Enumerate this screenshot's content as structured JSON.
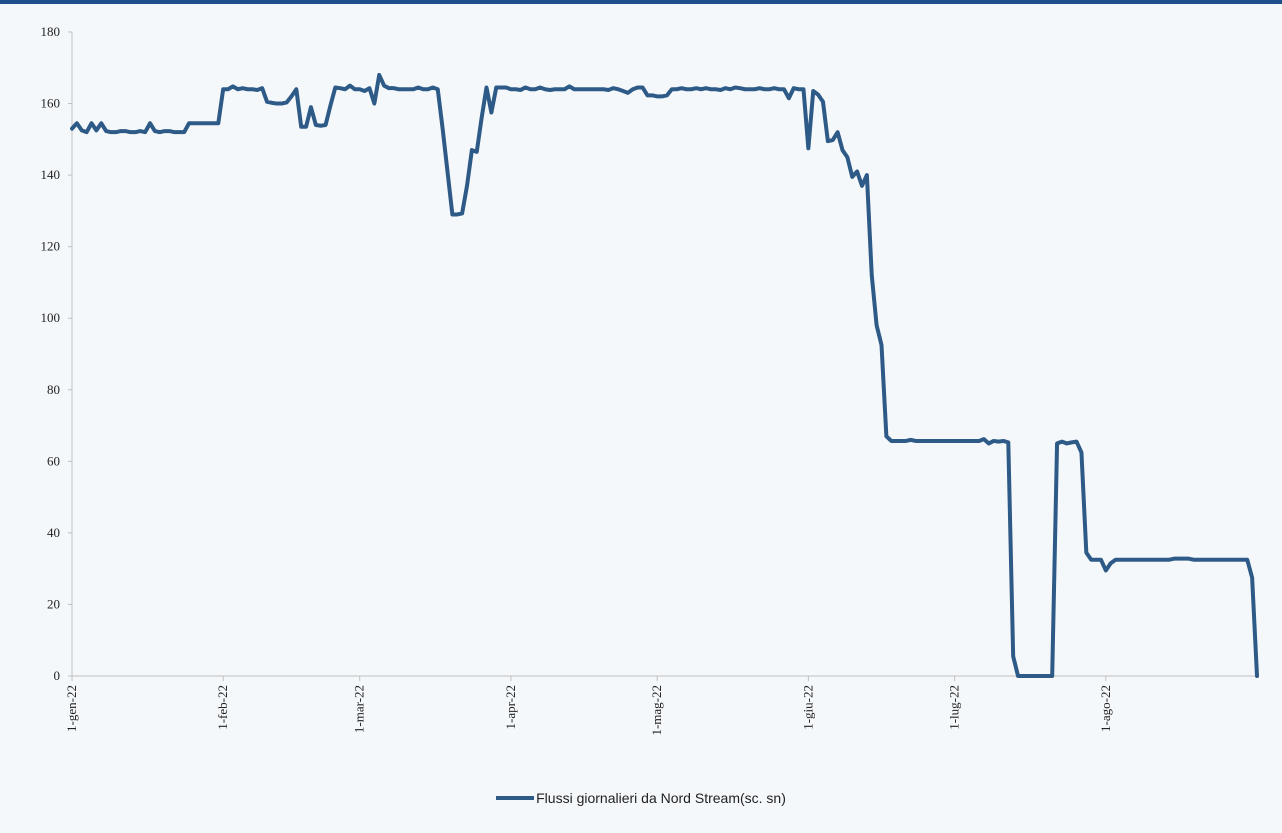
{
  "chart_data": {
    "type": "line",
    "title": "",
    "xlabel": "",
    "ylabel": "",
    "ylim": [
      0,
      180
    ],
    "yticks": [
      0,
      20,
      40,
      60,
      80,
      100,
      120,
      140,
      160,
      180
    ],
    "xticks": [
      {
        "date": "2022-01-01",
        "label": "1-gen-22"
      },
      {
        "date": "2022-02-01",
        "label": "1-feb-22"
      },
      {
        "date": "2022-03-01",
        "label": "1-mar-22"
      },
      {
        "date": "2022-04-01",
        "label": "1-apr-22"
      },
      {
        "date": "2022-05-01",
        "label": "1-mag-22"
      },
      {
        "date": "2022-06-01",
        "label": "1-giu-22"
      },
      {
        "date": "2022-07-01",
        "label": "1-lug-22"
      },
      {
        "date": "2022-08-01",
        "label": "1-ago-22"
      }
    ],
    "xlim": [
      "2022-01-01",
      "2022-09-01"
    ],
    "grid": false,
    "legend_position": "bottom",
    "line_color": "#2e5a87",
    "series": [
      {
        "name": "Flussi giornalieri da Nord Stream(sc. sn)",
        "points": [
          [
            "2022-01-01",
            153
          ],
          [
            "2022-01-02",
            154.5
          ],
          [
            "2022-01-03",
            152.5
          ],
          [
            "2022-01-04",
            152
          ],
          [
            "2022-01-05",
            154.5
          ],
          [
            "2022-01-06",
            152.5
          ],
          [
            "2022-01-07",
            154.5
          ],
          [
            "2022-01-08",
            152.3
          ],
          [
            "2022-01-09",
            152
          ],
          [
            "2022-01-10",
            152
          ],
          [
            "2022-01-11",
            152.3
          ],
          [
            "2022-01-12",
            152.3
          ],
          [
            "2022-01-13",
            152
          ],
          [
            "2022-01-14",
            152
          ],
          [
            "2022-01-15",
            152.3
          ],
          [
            "2022-01-16",
            152
          ],
          [
            "2022-01-17",
            154.5
          ],
          [
            "2022-01-18",
            152.3
          ],
          [
            "2022-01-19",
            152
          ],
          [
            "2022-01-20",
            152.3
          ],
          [
            "2022-01-21",
            152.3
          ],
          [
            "2022-01-22",
            152
          ],
          [
            "2022-01-23",
            152
          ],
          [
            "2022-01-24",
            152
          ],
          [
            "2022-01-25",
            154.5
          ],
          [
            "2022-01-26",
            154.5
          ],
          [
            "2022-01-27",
            154.5
          ],
          [
            "2022-01-28",
            154.5
          ],
          [
            "2022-01-29",
            154.5
          ],
          [
            "2022-01-30",
            154.5
          ],
          [
            "2022-01-31",
            154.5
          ],
          [
            "2022-02-01",
            164
          ],
          [
            "2022-02-02",
            164
          ],
          [
            "2022-02-03",
            164.8
          ],
          [
            "2022-02-04",
            164
          ],
          [
            "2022-02-05",
            164.3
          ],
          [
            "2022-02-06",
            164
          ],
          [
            "2022-02-07",
            164
          ],
          [
            "2022-02-08",
            163.8
          ],
          [
            "2022-02-09",
            164.3
          ],
          [
            "2022-02-10",
            160.5
          ],
          [
            "2022-02-11",
            160.2
          ],
          [
            "2022-02-12",
            160
          ],
          [
            "2022-02-13",
            160
          ],
          [
            "2022-02-14",
            160.3
          ],
          [
            "2022-02-15",
            162
          ],
          [
            "2022-02-16",
            164
          ],
          [
            "2022-02-17",
            153.5
          ],
          [
            "2022-02-18",
            153.5
          ],
          [
            "2022-02-19",
            159
          ],
          [
            "2022-02-20",
            154
          ],
          [
            "2022-02-21",
            153.8
          ],
          [
            "2022-02-22",
            154
          ],
          [
            "2022-02-23",
            159.5
          ],
          [
            "2022-02-24",
            164.5
          ],
          [
            "2022-02-25",
            164.3
          ],
          [
            "2022-02-26",
            164
          ],
          [
            "2022-02-27",
            165
          ],
          [
            "2022-02-28",
            164
          ],
          [
            "2022-03-01",
            164
          ],
          [
            "2022-03-02",
            163.5
          ],
          [
            "2022-03-03",
            164.3
          ],
          [
            "2022-03-04",
            160
          ],
          [
            "2022-03-05",
            168
          ],
          [
            "2022-03-06",
            165
          ],
          [
            "2022-03-07",
            164.3
          ],
          [
            "2022-03-08",
            164.3
          ],
          [
            "2022-03-09",
            164
          ],
          [
            "2022-03-10",
            164
          ],
          [
            "2022-03-11",
            164
          ],
          [
            "2022-03-12",
            164
          ],
          [
            "2022-03-13",
            164.5
          ],
          [
            "2022-03-14",
            164
          ],
          [
            "2022-03-15",
            164
          ],
          [
            "2022-03-16",
            164.5
          ],
          [
            "2022-03-17",
            164
          ],
          [
            "2022-03-18",
            153
          ],
          [
            "2022-03-19",
            141
          ],
          [
            "2022-03-20",
            129
          ],
          [
            "2022-03-21",
            129
          ],
          [
            "2022-03-22",
            129.3
          ],
          [
            "2022-03-23",
            137
          ],
          [
            "2022-03-24",
            147
          ],
          [
            "2022-03-25",
            146.5
          ],
          [
            "2022-03-26",
            156
          ],
          [
            "2022-03-27",
            164.5
          ],
          [
            "2022-03-28",
            157.5
          ],
          [
            "2022-03-29",
            164.5
          ],
          [
            "2022-03-30",
            164.5
          ],
          [
            "2022-03-31",
            164.5
          ],
          [
            "2022-04-01",
            164
          ],
          [
            "2022-04-02",
            164
          ],
          [
            "2022-04-03",
            163.8
          ],
          [
            "2022-04-04",
            164.5
          ],
          [
            "2022-04-05",
            164
          ],
          [
            "2022-04-06",
            164
          ],
          [
            "2022-04-07",
            164.5
          ],
          [
            "2022-04-08",
            164
          ],
          [
            "2022-04-09",
            163.8
          ],
          [
            "2022-04-10",
            164
          ],
          [
            "2022-04-11",
            164
          ],
          [
            "2022-04-12",
            164
          ],
          [
            "2022-04-13",
            164.8
          ],
          [
            "2022-04-14",
            164
          ],
          [
            "2022-04-15",
            164
          ],
          [
            "2022-04-16",
            164
          ],
          [
            "2022-04-17",
            164
          ],
          [
            "2022-04-18",
            164
          ],
          [
            "2022-04-19",
            164
          ],
          [
            "2022-04-20",
            164
          ],
          [
            "2022-04-21",
            163.8
          ],
          [
            "2022-04-22",
            164.3
          ],
          [
            "2022-04-23",
            164
          ],
          [
            "2022-04-24",
            163.5
          ],
          [
            "2022-04-25",
            163
          ],
          [
            "2022-04-26",
            164
          ],
          [
            "2022-04-27",
            164.5
          ],
          [
            "2022-04-28",
            164.5
          ],
          [
            "2022-04-29",
            162.3
          ],
          [
            "2022-04-30",
            162.3
          ],
          [
            "2022-05-01",
            162
          ],
          [
            "2022-05-02",
            162
          ],
          [
            "2022-05-03",
            162.3
          ],
          [
            "2022-05-04",
            164
          ],
          [
            "2022-05-05",
            164
          ],
          [
            "2022-05-06",
            164.3
          ],
          [
            "2022-05-07",
            164
          ],
          [
            "2022-05-08",
            164
          ],
          [
            "2022-05-09",
            164.3
          ],
          [
            "2022-05-10",
            164
          ],
          [
            "2022-05-11",
            164.3
          ],
          [
            "2022-05-12",
            164
          ],
          [
            "2022-05-13",
            164
          ],
          [
            "2022-05-14",
            163.8
          ],
          [
            "2022-05-15",
            164.3
          ],
          [
            "2022-05-16",
            164
          ],
          [
            "2022-05-17",
            164.5
          ],
          [
            "2022-05-18",
            164.3
          ],
          [
            "2022-05-19",
            164
          ],
          [
            "2022-05-20",
            164
          ],
          [
            "2022-05-21",
            164
          ],
          [
            "2022-05-22",
            164.3
          ],
          [
            "2022-05-23",
            164
          ],
          [
            "2022-05-24",
            164
          ],
          [
            "2022-05-25",
            164.3
          ],
          [
            "2022-05-26",
            164
          ],
          [
            "2022-05-27",
            164
          ],
          [
            "2022-05-28",
            161.5
          ],
          [
            "2022-05-29",
            164.3
          ],
          [
            "2022-05-30",
            164
          ],
          [
            "2022-05-31",
            164
          ],
          [
            "2022-06-01",
            147.5
          ],
          [
            "2022-06-02",
            163.5
          ],
          [
            "2022-06-03",
            162.5
          ],
          [
            "2022-06-04",
            160.5
          ],
          [
            "2022-06-05",
            149.5
          ],
          [
            "2022-06-06",
            149.8
          ],
          [
            "2022-06-07",
            152
          ],
          [
            "2022-06-08",
            147
          ],
          [
            "2022-06-09",
            145
          ],
          [
            "2022-06-10",
            139.5
          ],
          [
            "2022-06-11",
            141
          ],
          [
            "2022-06-12",
            137
          ],
          [
            "2022-06-13",
            140
          ],
          [
            "2022-06-14",
            112
          ],
          [
            "2022-06-15",
            98
          ],
          [
            "2022-06-16",
            92.5
          ],
          [
            "2022-06-17",
            67
          ],
          [
            "2022-06-18",
            65.7
          ],
          [
            "2022-06-19",
            65.7
          ],
          [
            "2022-06-20",
            65.7
          ],
          [
            "2022-06-21",
            65.7
          ],
          [
            "2022-06-22",
            66
          ],
          [
            "2022-06-23",
            65.7
          ],
          [
            "2022-06-24",
            65.7
          ],
          [
            "2022-06-25",
            65.7
          ],
          [
            "2022-06-26",
            65.7
          ],
          [
            "2022-06-27",
            65.7
          ],
          [
            "2022-06-28",
            65.7
          ],
          [
            "2022-06-29",
            65.7
          ],
          [
            "2022-06-30",
            65.7
          ],
          [
            "2022-07-01",
            65.7
          ],
          [
            "2022-07-02",
            65.7
          ],
          [
            "2022-07-03",
            65.7
          ],
          [
            "2022-07-04",
            65.7
          ],
          [
            "2022-07-05",
            65.7
          ],
          [
            "2022-07-06",
            65.7
          ],
          [
            "2022-07-07",
            66.2
          ],
          [
            "2022-07-08",
            65
          ],
          [
            "2022-07-09",
            65.7
          ],
          [
            "2022-07-10",
            65.5
          ],
          [
            "2022-07-11",
            65.7
          ],
          [
            "2022-07-12",
            65.3
          ],
          [
            "2022-07-13",
            5.5
          ],
          [
            "2022-07-14",
            0
          ],
          [
            "2022-07-15",
            0
          ],
          [
            "2022-07-16",
            0
          ],
          [
            "2022-07-17",
            0
          ],
          [
            "2022-07-18",
            0
          ],
          [
            "2022-07-19",
            0
          ],
          [
            "2022-07-20",
            0
          ],
          [
            "2022-07-21",
            0
          ],
          [
            "2022-07-22",
            65
          ],
          [
            "2022-07-23",
            65.5
          ],
          [
            "2022-07-24",
            65
          ],
          [
            "2022-07-25",
            65.3
          ],
          [
            "2022-07-26",
            65.5
          ],
          [
            "2022-07-27",
            62.5
          ],
          [
            "2022-07-28",
            34.5
          ],
          [
            "2022-07-29",
            32.5
          ],
          [
            "2022-07-30",
            32.5
          ],
          [
            "2022-07-31",
            32.5
          ],
          [
            "2022-08-01",
            29.5
          ],
          [
            "2022-08-02",
            31.5
          ],
          [
            "2022-08-03",
            32.5
          ],
          [
            "2022-08-04",
            32.5
          ],
          [
            "2022-08-05",
            32.5
          ],
          [
            "2022-08-06",
            32.5
          ],
          [
            "2022-08-07",
            32.5
          ],
          [
            "2022-08-08",
            32.5
          ],
          [
            "2022-08-09",
            32.5
          ],
          [
            "2022-08-10",
            32.5
          ],
          [
            "2022-08-11",
            32.5
          ],
          [
            "2022-08-12",
            32.5
          ],
          [
            "2022-08-13",
            32.5
          ],
          [
            "2022-08-14",
            32.5
          ],
          [
            "2022-08-15",
            32.8
          ],
          [
            "2022-08-16",
            32.8
          ],
          [
            "2022-08-17",
            32.8
          ],
          [
            "2022-08-18",
            32.8
          ],
          [
            "2022-08-19",
            32.5
          ],
          [
            "2022-08-20",
            32.5
          ],
          [
            "2022-08-21",
            32.5
          ],
          [
            "2022-08-22",
            32.5
          ],
          [
            "2022-08-23",
            32.5
          ],
          [
            "2022-08-24",
            32.5
          ],
          [
            "2022-08-25",
            32.5
          ],
          [
            "2022-08-26",
            32.5
          ],
          [
            "2022-08-27",
            32.5
          ],
          [
            "2022-08-28",
            32.5
          ],
          [
            "2022-08-29",
            32.5
          ],
          [
            "2022-08-30",
            32.5
          ],
          [
            "2022-08-31",
            27.5
          ],
          [
            "2022-09-01",
            0
          ]
        ]
      }
    ]
  }
}
